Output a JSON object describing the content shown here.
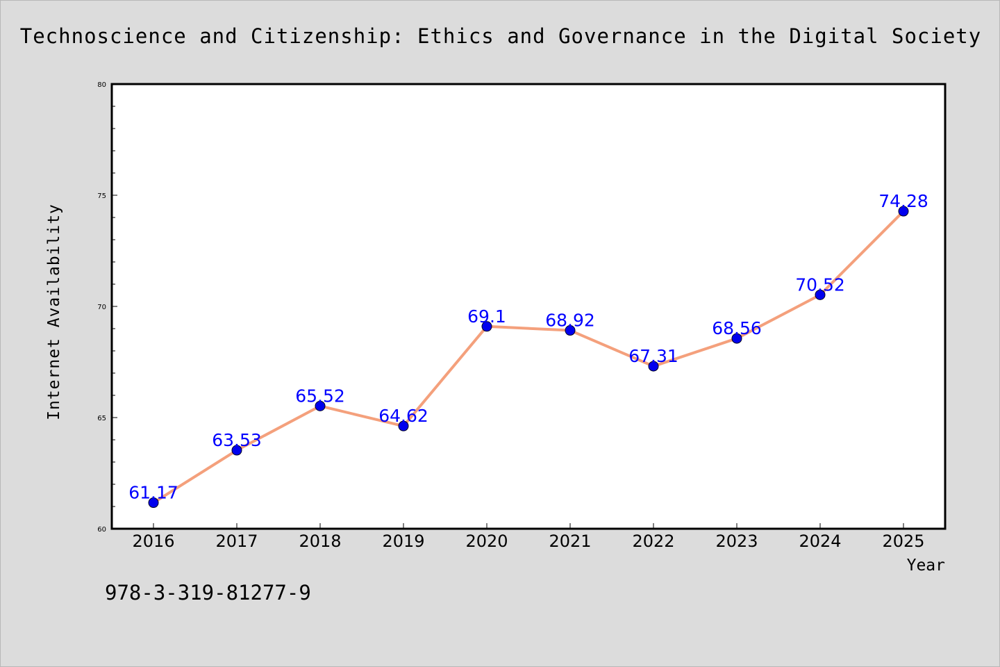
{
  "page": {
    "title": "Technoscience and Citizenship: Ethics and Governance in the Digital Society",
    "isbn": "978-3-319-81277-9"
  },
  "chart_data": {
    "type": "line",
    "title": "Technoscience and Citizenship: Ethics and Governance in the Digital Society",
    "xlabel": "Year",
    "ylabel": "Internet Availability",
    "categories": [
      "2016",
      "2017",
      "2018",
      "2019",
      "2020",
      "2021",
      "2022",
      "2023",
      "2024",
      "2025"
    ],
    "series": [
      {
        "values": [
          61.17,
          63.53,
          65.52,
          64.62,
          69.1,
          68.92,
          67.31,
          68.56,
          70.52,
          74.28
        ],
        "labels": [
          "61.17",
          "63.53",
          "65.52",
          "64.62",
          "69.1",
          "68.92",
          "67.31",
          "68.56",
          "70.52",
          "74.28"
        ]
      }
    ],
    "ylim": [
      60,
      80
    ],
    "yticks": [
      "60",
      "65",
      "70",
      "75",
      "80"
    ],
    "grid": false,
    "legend": "none",
    "colors": {
      "line": "#f4a07c",
      "marker": "#0000ee",
      "label": "#0000ff",
      "plot_background": "#ffffff",
      "figure_background": "#dcdcdc"
    }
  }
}
